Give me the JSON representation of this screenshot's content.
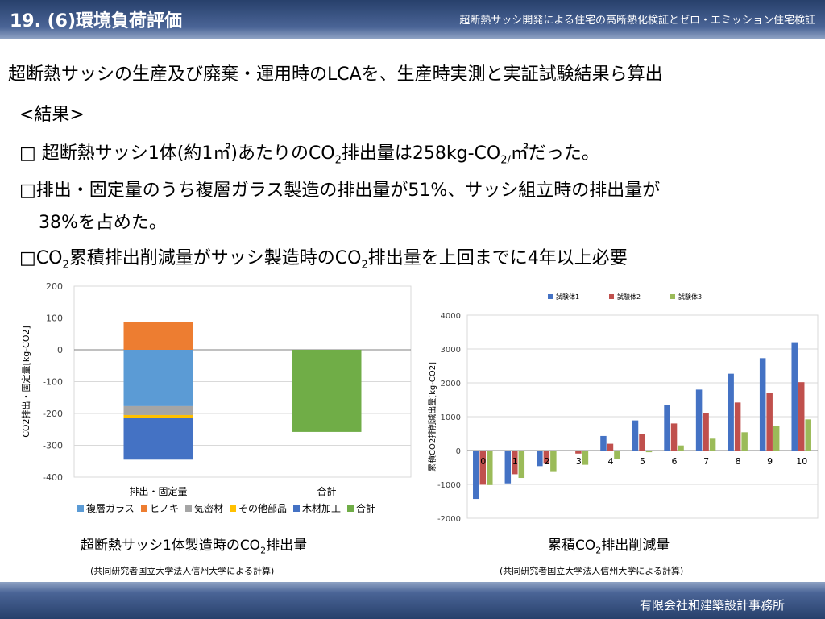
{
  "header": {
    "title": "19. (6)環境負荷評価",
    "subtitle": "超断熱サッシ開発による住宅の高断熱化検証とゼロ・エミッション住宅検証"
  },
  "headline": "超断熱サッシの生産及び廃棄・運用時のLCAを、生産時実測と実証試験結果ら算出",
  "result_label": "<結果>",
  "bullets": {
    "b1_a": "□ 超断熱サッシ1体(約1㎡)あたりのCO",
    "b1_sub1": "2",
    "b1_b": "排出量は258kg-CO",
    "b1_sub2": "2/",
    "b1_c": "㎡だった。",
    "b2_line1": "□排出・固定量のうち複層ガラス製造の排出量が51%、サッシ組立時の排出量が",
    "b2_line2": "38%を占めた。",
    "b3_a": "□CO",
    "b3_sub1": "2",
    "b3_b": "累積排出削減量がサッシ製造時のCO",
    "b3_sub2": "2",
    "b3_c": "排出量を上回までに4年以上必要"
  },
  "captions": {
    "left_a": "超断熱サッシ1体製造時のCO",
    "left_sub": "2",
    "left_b": "排出量",
    "right_a": "累積CO",
    "right_sub": "2",
    "right_b": "排出削減量",
    "source_left": "(共同研究者国立大学法人信州大学による計算)",
    "source_right": "(共同研究者国立大学法人信州大学による計算)"
  },
  "footer": "有限会社和建築設計事務所",
  "chart_data": [
    {
      "type": "bar",
      "stacked": true,
      "ylabel": "CO2排出・固定量[kg-CO2]",
      "categories": [
        "排出・固定量",
        "合計"
      ],
      "ylim": [
        -400,
        200
      ],
      "yticks": [
        200,
        100,
        0,
        -100,
        -200,
        -300,
        -400
      ],
      "legend_position": "bottom",
      "series": [
        {
          "name": "複層ガラス",
          "color": "#5b9bd5",
          "values": [
            -177,
            0
          ]
        },
        {
          "name": "ヒノキ",
          "color": "#ed7d31",
          "values": [
            87,
            0
          ]
        },
        {
          "name": "気密材",
          "color": "#a5a5a5",
          "values": [
            -28,
            0
          ]
        },
        {
          "name": "その他部品",
          "color": "#ffc000",
          "values": [
            -8,
            0
          ]
        },
        {
          "name": "木材加工",
          "color": "#4472c4",
          "values": [
            -132,
            0
          ]
        },
        {
          "name": "合計",
          "color": "#70ad47",
          "values": [
            0,
            -258
          ]
        }
      ]
    },
    {
      "type": "bar",
      "ylabel": "累積CO2排削減出量[kg-CO2]",
      "categories": [
        "0",
        "1",
        "2",
        "3",
        "4",
        "5",
        "6",
        "7",
        "8",
        "9",
        "10"
      ],
      "ylim": [
        -2000,
        4000
      ],
      "yticks": [
        4000,
        3000,
        2000,
        1000,
        0,
        -1000,
        -2000
      ],
      "legend_position": "top",
      "series": [
        {
          "name": "試験体1",
          "color": "#4472c4",
          "values": [
            -1430,
            -970,
            -460,
            0,
            430,
            890,
            1350,
            1800,
            2270,
            2730,
            3200
          ]
        },
        {
          "name": "試験体2",
          "color": "#c0504d",
          "values": [
            -1010,
            -700,
            -390,
            -90,
            200,
            500,
            800,
            1100,
            1420,
            1710,
            2020
          ]
        },
        {
          "name": "試験体3",
          "color": "#9bbb59",
          "values": [
            -1020,
            -810,
            -610,
            -420,
            -250,
            -50,
            150,
            350,
            540,
            730,
            920
          ]
        }
      ]
    }
  ]
}
